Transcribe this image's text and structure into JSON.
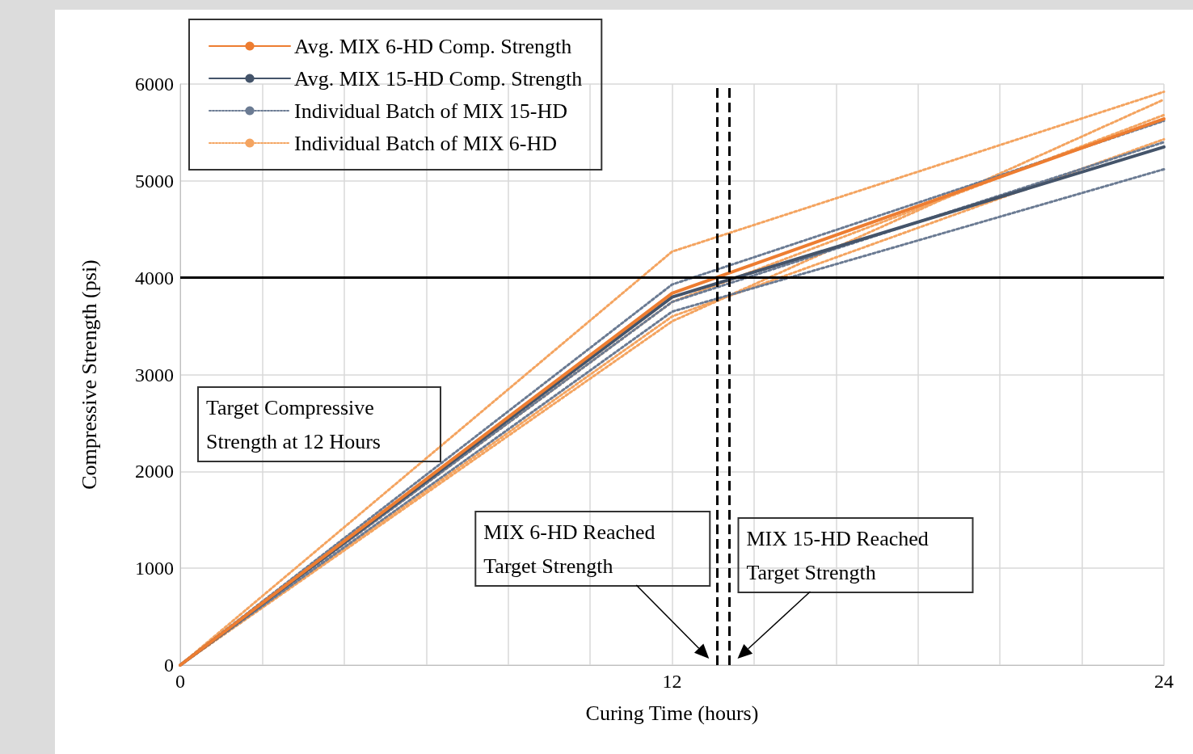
{
  "chart_data": {
    "type": "line",
    "xlabel": "Curing Time (hours)",
    "ylabel": "Compressive Strength (psi)",
    "x": [
      0,
      12,
      24
    ],
    "xlim": [
      0,
      24
    ],
    "xticks": [
      0,
      {
        "value": 2,
        "label": null
      },
      {
        "value": 4,
        "label": null
      },
      {
        "value": 6,
        "label": null
      },
      {
        "value": 8,
        "label": null
      },
      {
        "value": 10,
        "label": null
      },
      12,
      {
        "value": 14,
        "label": null
      },
      {
        "value": 16,
        "label": null
      },
      {
        "value": 18,
        "label": null
      },
      {
        "value": 20,
        "label": null
      },
      {
        "value": 22,
        "label": null
      },
      24
    ],
    "ylim": [
      0,
      6000
    ],
    "yticks": [
      0,
      1000,
      2000,
      3000,
      4000,
      5000,
      6000
    ],
    "grid": true,
    "legend": "top left",
    "marker": "none",
    "series": [
      {
        "name": "Individual Batch of MIX 6-HD",
        "color": "#f4a460",
        "line_style": "dotted",
        "values": [
          0,
          4270,
          5920
        ]
      },
      {
        "color": "#f4a460",
        "line_style": "dotted",
        "values": [
          0,
          3550,
          5840
        ]
      },
      {
        "color": "#f4a460",
        "line_style": "dotted",
        "values": [
          0,
          3600,
          5430
        ]
      },
      {
        "color": "#f4a460",
        "line_style": "dotted",
        "values": [
          0,
          3750,
          5680
        ]
      },
      {
        "name": "Individual Batch of MIX 15-HD",
        "color": "#6b7b93",
        "line_style": "dotted",
        "values": [
          0,
          3930,
          5620
        ]
      },
      {
        "color": "#6b7b93",
        "line_style": "dotted",
        "values": [
          0,
          3650,
          5120
        ]
      },
      {
        "color": "#6b7b93",
        "line_style": "dotted",
        "values": [
          0,
          3750,
          5400
        ]
      },
      {
        "name": "Avg. MIX 15-HD Comp. Strength",
        "color": "#44546a",
        "line_style": "solid",
        "values": [
          0,
          3800,
          5350
        ]
      },
      {
        "name": "Avg. MIX 6-HD Comp. Strength",
        "color": "#ed7d31",
        "line_style": "solid",
        "values": [
          0,
          3840,
          5640
        ]
      }
    ],
    "ref_lines": [
      {
        "axis": "y",
        "value": 4000,
        "color": "#000000",
        "line_style": "solid"
      },
      {
        "axis": "x",
        "value": 13.1,
        "color": "#000000",
        "line_style": "dashed",
        "label": "MIX 6-HD Reached Target Strength"
      },
      {
        "axis": "x",
        "value": 13.4,
        "color": "#000000",
        "line_style": "dashed",
        "label": "MIX 15-HD Reached Target Strength"
      }
    ],
    "annotations": [
      "Target Compressive Strength at 12 Hours"
    ]
  }
}
